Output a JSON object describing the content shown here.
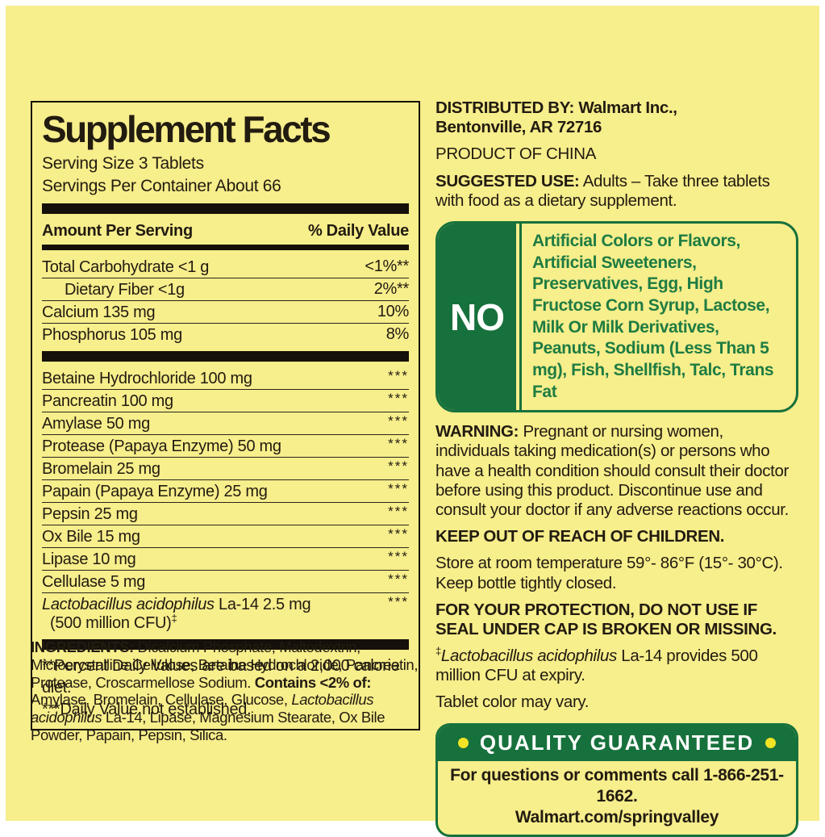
{
  "colors": {
    "background_yellow": "#F7EE8C",
    "brand_green": "#17713C",
    "green_text": "#1E7C42",
    "text_ink": "#221B10"
  },
  "sf": {
    "title": "Supplement Facts",
    "serving_size": "Serving Size 3 Tablets",
    "servings_per_container": "Servings Per Container About 66",
    "header": {
      "amount": "Amount Per Serving",
      "daily_value": "% Daily Value"
    },
    "rows1": [
      {
        "name": "Total Carbohydrate <1 g",
        "dv": "<1%**"
      },
      {
        "name": "Dietary Fiber <1g",
        "dv": "2%**"
      },
      {
        "name": "Calcium 135 mg",
        "dv": "10%"
      },
      {
        "name": "Phosphorus 105 mg",
        "dv": "8%"
      }
    ],
    "rows2": [
      {
        "name": "Betaine Hydrochloride 100 mg",
        "dv": "***"
      },
      {
        "name": "Pancreatin 100 mg",
        "dv": "***"
      },
      {
        "name": "Amylase 50 mg",
        "dv": "***"
      },
      {
        "name": "Protease (Papaya Enzyme) 50 mg",
        "dv": "***"
      },
      {
        "name": "Bromelain 25 mg",
        "dv": "***"
      },
      {
        "name": "Papain (Papaya Enzyme) 25 mg",
        "dv": "***"
      },
      {
        "name": "Pepsin 25 mg",
        "dv": "***"
      },
      {
        "name": "Ox Bile 15 mg",
        "dv": "***"
      },
      {
        "name": "Lipase 10 mg",
        "dv": "***"
      },
      {
        "name": "Cellulase 5 mg",
        "dv": "***"
      }
    ],
    "lacto_row": {
      "name_italic": "Lactobacillus acidophilus",
      "name_rest": " La-14 2.5 mg",
      "name_line2": "(500 million CFU)",
      "dv": "***"
    },
    "dagger": "‡",
    "footnote1": "**Percent Daily Values are based on a 2,000 calorie diet.",
    "footnote2": "***Daily Value not established."
  },
  "ingredients": {
    "label": "INGREDIENTS:",
    "seg1": " Dicalcium Phosphate, Maltodextrin, Microcrystalline Cellulose, Betaine Hydrochloride, Pancreatin, Protease, Croscarmellose Sodium. ",
    "contains_label": "Contains <2% of:",
    "seg2": " Amylase, Bromelain, Cellulase, Glucose, ",
    "italic": "Lactobacillus acidophilus",
    "seg3": " La-14, Lipase, Magnesium Stearate, Ox Bile Powder, Papain, Pepsin, Silica."
  },
  "right": {
    "distributed_line1": "DISTRIBUTED BY: Walmart Inc.,",
    "distributed_line2": "Bentonville, AR 72716",
    "product_of": "PRODUCT OF CHINA",
    "suggested_use_label": "SUGGESTED USE:",
    "suggested_use_text": " Adults – Take three tablets with food as a dietary supplement.",
    "no_badge": {
      "word": "NO",
      "items": "Artificial Colors or Flavors, Artificial Sweeteners, Preservatives, Egg, High Fructose Corn Syrup, Lactose, Milk Or Milk Derivatives, Peanuts, Sodium (Less Than 5 mg), Fish, Shellfish, Talc, Trans Fat"
    },
    "warning_label": "WARNING:",
    "warning_text": " Pregnant or nursing women, individuals taking medication(s) or persons who have a health condition should consult their doctor before using this product. Discontinue use and consult your doctor if any adverse reactions occur.",
    "keep_out": "KEEP OUT OF REACH OF CHILDREN.",
    "storage": "Store at room temperature 59°- 86°F (15°- 30°C). Keep bottle tightly closed.",
    "protection": "FOR YOUR PROTECTION, DO NOT USE IF SEAL UNDER CAP IS BROKEN OR MISSING.",
    "lacto_note_dagger": "‡",
    "lacto_note_italic": "Lactobacillus acidophilus",
    "lacto_note_rest": " La-14 provides 500 million CFU at expiry.",
    "tablet_note": "Tablet color may vary.",
    "quality": {
      "title": "QUALITY GUARANTEED",
      "line1": "For questions or comments call 1-866-251-1662.",
      "line2": "Walmart.com/springvalley"
    }
  }
}
